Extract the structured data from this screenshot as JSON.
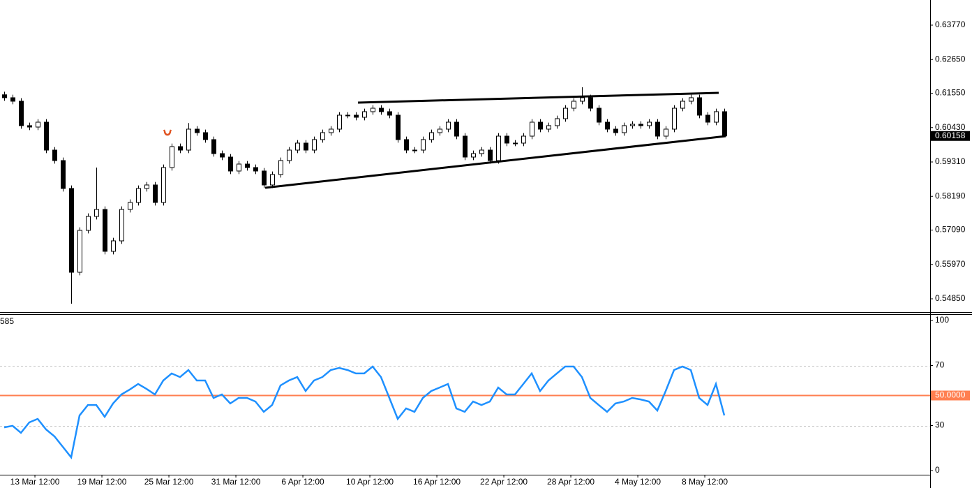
{
  "chart_data": [
    {
      "type": "candlestick",
      "color": "#000000",
      "up_color": "#ffffff",
      "xlim": [
        -0.5,
        110.58
      ],
      "ylim": [
        0.54418,
        0.64589
      ],
      "yticks": [
        {
          "value": 0.6377,
          "label": "0.63770"
        },
        {
          "value": 0.6265,
          "label": "0.62650"
        },
        {
          "value": 0.6155,
          "label": "0.61550"
        },
        {
          "value": 0.6043,
          "label": "0.60430"
        },
        {
          "value": 0.5931,
          "label": "0.59310"
        },
        {
          "value": 0.5819,
          "label": "0.58190"
        },
        {
          "value": 0.5709,
          "label": "0.57090"
        },
        {
          "value": 0.5597,
          "label": "0.55970"
        },
        {
          "value": 0.5485,
          "label": "0.54850"
        }
      ],
      "last_price": 0.60158,
      "open": [
        0.615,
        0.61404,
        0.6129,
        0.60494,
        0.60448,
        0.60607,
        0.59697,
        0.59356,
        0.58446,
        0.55715,
        0.57081,
        0.57536,
        0.57763,
        0.56398,
        0.56739,
        0.57763,
        0.57991,
        0.58446,
        0.5856,
        0.57991,
        0.59128,
        0.59811,
        0.59697,
        0.6038,
        0.60266,
        0.60039,
        0.59583,
        0.5947,
        0.59015,
        0.59242,
        0.59128,
        0.59015,
        0.5856,
        0.58901,
        0.59356,
        0.59697,
        0.59925,
        0.59697,
        0.60039,
        0.60266,
        0.6038,
        0.60835,
        0.60835,
        0.60767,
        0.60949,
        0.61062,
        0.60949,
        0.60835,
        0.60039,
        0.59697,
        0.59697,
        0.60039,
        0.60266,
        0.6038,
        0.60607,
        0.60152,
        0.5947,
        0.59583,
        0.59697,
        0.59356,
        0.60152,
        0.59925,
        0.59925,
        0.60152,
        0.60607,
        0.6038,
        0.60494,
        0.60721,
        0.61062,
        0.6129,
        0.61404,
        0.61062,
        0.60607,
        0.6038,
        0.60266,
        0.60494,
        0.60539,
        0.60494,
        0.60607,
        0.60152,
        0.6038,
        0.61062,
        0.6129,
        0.61404,
        0.60835,
        0.60607,
        0.60949
      ],
      "high": [
        0.616,
        0.61504,
        0.6139,
        0.60594,
        0.60707,
        0.60707,
        0.59797,
        0.59456,
        0.58546,
        0.57181,
        0.57636,
        0.59128,
        0.57863,
        0.56839,
        0.57863,
        0.58091,
        0.58546,
        0.5866,
        0.5866,
        0.59228,
        0.59911,
        0.59911,
        0.6058,
        0.6048,
        0.60366,
        0.60139,
        0.59683,
        0.5957,
        0.59342,
        0.59342,
        0.59228,
        0.59115,
        0.59001,
        0.59456,
        0.59797,
        0.60025,
        0.60025,
        0.60139,
        0.60366,
        0.6048,
        0.60935,
        0.60935,
        0.60935,
        0.61049,
        0.61162,
        0.61162,
        0.61049,
        0.60935,
        0.60139,
        0.59797,
        0.60139,
        0.60366,
        0.6048,
        0.60707,
        0.60707,
        0.60252,
        0.59683,
        0.59797,
        0.59797,
        0.60252,
        0.60252,
        0.60025,
        0.60252,
        0.60707,
        0.60707,
        0.60594,
        0.60821,
        0.61162,
        0.6139,
        0.61745,
        0.61504,
        0.61162,
        0.60707,
        0.6048,
        0.60594,
        0.60639,
        0.60639,
        0.60707,
        0.60707,
        0.6048,
        0.61162,
        0.6139,
        0.61504,
        0.61504,
        0.60935,
        0.61049,
        0.61049
      ],
      "low": [
        0.61304,
        0.6119,
        0.60394,
        0.60348,
        0.60348,
        0.59597,
        0.59256,
        0.58346,
        0.54692,
        0.55615,
        0.56981,
        0.57436,
        0.56298,
        0.56298,
        0.56639,
        0.57663,
        0.57891,
        0.58346,
        0.57891,
        0.57891,
        0.59028,
        0.59597,
        0.59597,
        0.60166,
        0.59939,
        0.59483,
        0.5937,
        0.58915,
        0.58915,
        0.59028,
        0.58915,
        0.5846,
        0.5846,
        0.58801,
        0.59256,
        0.59597,
        0.59597,
        0.59597,
        0.59939,
        0.60166,
        0.6028,
        0.60735,
        0.60667,
        0.60667,
        0.60849,
        0.60849,
        0.60735,
        0.59939,
        0.59597,
        0.59597,
        0.59597,
        0.59939,
        0.60166,
        0.6028,
        0.60052,
        0.5937,
        0.5937,
        0.59483,
        0.59256,
        0.59256,
        0.59825,
        0.59825,
        0.59825,
        0.60052,
        0.6028,
        0.6028,
        0.60394,
        0.60621,
        0.60962,
        0.6119,
        0.60962,
        0.60507,
        0.6028,
        0.60166,
        0.60166,
        0.60394,
        0.60394,
        0.60394,
        0.60052,
        0.60052,
        0.6028,
        0.60962,
        0.6119,
        0.60735,
        0.60507,
        0.60507,
        0.60158
      ],
      "close": [
        0.61404,
        0.6129,
        0.60494,
        0.60448,
        0.60607,
        0.59697,
        0.59356,
        0.58446,
        0.55715,
        0.57081,
        0.57536,
        0.57763,
        0.56398,
        0.56739,
        0.57763,
        0.57991,
        0.58446,
        0.5856,
        0.57991,
        0.59128,
        0.59811,
        0.59697,
        0.6038,
        0.60266,
        0.60039,
        0.59583,
        0.5947,
        0.59015,
        0.59242,
        0.59128,
        0.59015,
        0.5856,
        0.58901,
        0.59356,
        0.59697,
        0.59925,
        0.59697,
        0.60039,
        0.60266,
        0.6038,
        0.60835,
        0.60835,
        0.60767,
        0.60949,
        0.61062,
        0.60949,
        0.60835,
        0.60039,
        0.59697,
        0.59697,
        0.60039,
        0.60266,
        0.6038,
        0.60607,
        0.60152,
        0.5947,
        0.59583,
        0.59697,
        0.59356,
        0.60152,
        0.59925,
        0.59925,
        0.60152,
        0.60607,
        0.6038,
        0.60494,
        0.60721,
        0.61062,
        0.6129,
        0.61404,
        0.61062,
        0.60607,
        0.6038,
        0.60266,
        0.60494,
        0.60539,
        0.60494,
        0.60607,
        0.60152,
        0.6038,
        0.61062,
        0.6129,
        0.61404,
        0.60835,
        0.60607,
        0.60949,
        0.60158
      ],
      "trendlines": [
        {
          "x": [
            42.25,
            85.33
          ],
          "y": [
            0.61244,
            0.61563
          ]
        },
        {
          "x": [
            31.17,
            86.17
          ],
          "y": [
            0.58469,
            0.60152
          ]
        }
      ]
    },
    {
      "type": "line",
      "label": "585",
      "color": "#1e90ff",
      "level_color": "#ff7f50",
      "xlim": [
        -0.5,
        110.58
      ],
      "ylim": [
        -10.7,
        104.2
      ],
      "yticks": [
        100,
        70,
        30,
        0
      ],
      "dotted_levels": [
        70,
        30
      ],
      "level": {
        "value": 50,
        "label": "50.0000"
      },
      "xticks": [
        {
          "value": 3.67,
          "label": "13 Mar 12:00"
        },
        {
          "value": 11.67,
          "label": "19 Mar 12:00"
        },
        {
          "value": 19.67,
          "label": "25 Mar 12:00"
        },
        {
          "value": 27.67,
          "label": "31 Mar 12:00"
        },
        {
          "value": 35.67,
          "label": "6 Apr 12:00"
        },
        {
          "value": 43.67,
          "label": "10 Apr 12:00"
        },
        {
          "value": 51.67,
          "label": "16 Apr 12:00"
        },
        {
          "value": 59.67,
          "label": "22 Apr 12:00"
        },
        {
          "value": 67.67,
          "label": "28 Apr 12:00"
        },
        {
          "value": 75.67,
          "label": "4 May 12:00"
        },
        {
          "value": 83.67,
          "label": "8 May 12:00"
        }
      ],
      "values": [
        28.8,
        29.8,
        25.1,
        32.1,
        34.4,
        27.4,
        22.8,
        15.8,
        8.8,
        36.7,
        43.7,
        43.7,
        35.8,
        44.7,
        50.7,
        54.0,
        57.7,
        54.4,
        50.7,
        60.0,
        64.7,
        62.3,
        67.0,
        60.0,
        60.0,
        48.4,
        50.7,
        44.7,
        48.4,
        48.4,
        46.0,
        39.1,
        43.7,
        56.7,
        60.0,
        62.3,
        53.0,
        60.0,
        62.3,
        67.0,
        68.4,
        67.0,
        64.7,
        64.7,
        69.3,
        62.3,
        48.4,
        34.4,
        41.4,
        39.1,
        48.4,
        53.0,
        55.3,
        57.7,
        41.4,
        39.1,
        46.0,
        43.7,
        46.0,
        55.3,
        50.7,
        50.7,
        57.7,
        64.7,
        53.0,
        60.0,
        64.7,
        69.3,
        69.3,
        62.3,
        48.4,
        43.7,
        39.1,
        44.7,
        46.0,
        48.4,
        47.4,
        46.0,
        40.0,
        53.0,
        67.0,
        69.3,
        67.0,
        48.4,
        43.7,
        57.7,
        36.7
      ]
    }
  ]
}
